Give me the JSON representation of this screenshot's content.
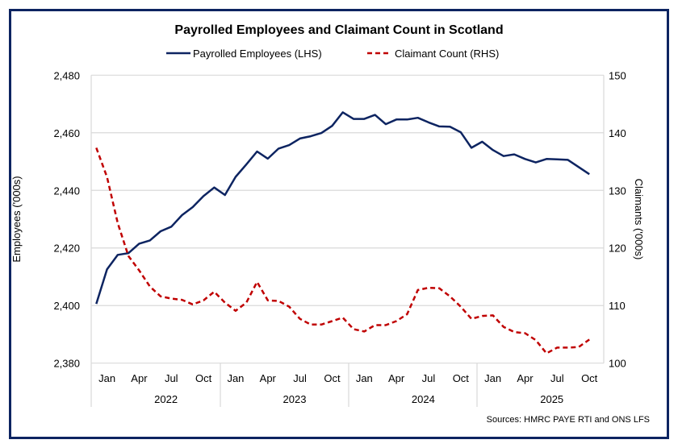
{
  "chart_data": {
    "type": "line",
    "title": "Payrolled Employees and Claimant Count in Scotland",
    "ylabel": "Employees ('000s)",
    "y2label": "Claimants ('000s)",
    "ylim": [
      2380,
      2480
    ],
    "y2lim": [
      100,
      150
    ],
    "yticks": [
      "2,380",
      "2,400",
      "2,420",
      "2,440",
      "2,460",
      "2,480"
    ],
    "y2ticks": [
      "100",
      "110",
      "120",
      "130",
      "140",
      "150"
    ],
    "grid": true,
    "legend": "top",
    "x_start": "2021-12",
    "x_end": "2025-10",
    "month_ticks": [
      "Jan",
      "Apr",
      "Jul",
      "Oct"
    ],
    "years": [
      "2022",
      "2023",
      "2024",
      "2025"
    ],
    "series": [
      {
        "name": "Payrolled Employees (LHS)",
        "axis": "left",
        "color": "#0d2461",
        "style": "solid",
        "values": [
          2400.6,
          2412.6,
          2417.6,
          2418.2,
          2421.5,
          2422.6,
          2425.8,
          2427.4,
          2431.4,
          2434.2,
          2438.0,
          2441.0,
          2438.4,
          2444.7,
          2449.0,
          2453.5,
          2451.0,
          2454.5,
          2455.7,
          2458.0,
          2458.8,
          2459.9,
          2462.4,
          2467.1,
          2464.8,
          2464.8,
          2466.2,
          2463.0,
          2464.6,
          2464.6,
          2465.2,
          2463.6,
          2462.2,
          2462.1,
          2460.2,
          2454.8,
          2456.9,
          2454.0,
          2451.9,
          2452.5,
          2450.9,
          2449.7,
          2450.9,
          2450.8,
          2450.6,
          2448.1,
          2445.6
        ]
      },
      {
        "name": "Claimant Count (RHS)",
        "axis": "right",
        "color": "#c00000",
        "style": "dashed",
        "values": [
          137.4,
          132.3,
          124.3,
          118.6,
          116.1,
          113.3,
          111.6,
          111.2,
          111.0,
          110.2,
          110.9,
          112.4,
          110.5,
          109.1,
          110.5,
          114.1,
          110.9,
          110.8,
          109.8,
          107.7,
          106.7,
          106.7,
          107.3,
          107.9,
          105.9,
          105.5,
          106.6,
          106.6,
          107.3,
          108.5,
          112.7,
          113.1,
          113.0,
          111.6,
          109.8,
          107.7,
          108.2,
          108.3,
          106.3,
          105.4,
          105.2,
          104.0,
          101.7,
          102.7,
          102.7,
          102.8,
          104.1
        ]
      }
    ],
    "source": "Sources: HMRC PAYE RTI and ONS LFS"
  }
}
